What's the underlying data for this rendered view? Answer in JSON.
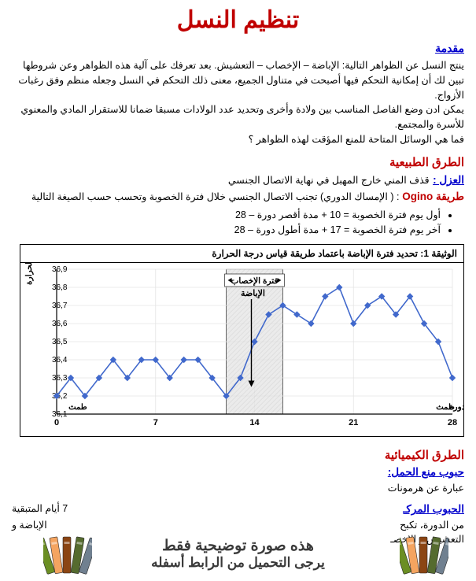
{
  "title": "تنظيم النسل",
  "intro": {
    "header": "مقدمة",
    "p1": "ينتج النسل عن الظواهر التالية: الإباضة – الإخصاب – التعشيش. بعد تعرفك على آلية هذه الظواهر وعن شروطها تبين لك أن إمكانية التحكم فيها أصبحت في متناول الجميع، معنى ذلك التحكم في النسل وجعله منظم وفق رغبات الأزواج.",
    "p2": "يمكن ادن وضع الفاصل المناسب بين ولادة وأخرى وتحديد عدد الولادات مسبقا ضمانا للاستقرار المادي والمعنوي للأسرة والمجتمع.",
    "p3": "فما هي الوسائل المتاحة للمنع المؤقت لهذه الظواهر ؟"
  },
  "natural": {
    "header": "الطرق الطبيعية",
    "azl_term": "العزل :",
    "azl_text": " قذف المني خارج المهبل في نهاية الاتصال الجنسي",
    "ogino_term": "طريقة Ogino ",
    "ogino_text": ": ( الإمساك الدوري) تجنب الاتصال الجنسي خلال فترة الخصوبة  وتحسب حسب الصيغة التالية",
    "bullet1": "أول يوم فترة الخصوبة = 10 + مدة أقصر دورة – 28",
    "bullet2": "آخر يوم فترة الخصوبة = 17 + مدة أطول دورة – 28"
  },
  "chart": {
    "title": "الوثيقة 1: تحديد فترة الإباضة باعتماد طريقة قياس درجة الحرارة",
    "yaxis_label": "الحرارة",
    "xaxis_label": "أيام الدورة",
    "tamth": "طمث",
    "fertile_label": "فترة الإخصاب",
    "ovulation_label": "الإباضة",
    "y_ticks": [
      "36,9",
      "36,8",
      "36,7",
      "36,6",
      "36,5",
      "36,4",
      "36,3",
      "36,2",
      "36,1"
    ],
    "x_ticks": [
      "0",
      "7",
      "14",
      "21",
      "28"
    ],
    "line_color": "#4169cc",
    "marker_color": "#4169cc",
    "grid_color": "#e5e5e5",
    "shade_color": "rgba(0,0,0,0.08)",
    "data_y": [
      36.2,
      36.3,
      36.2,
      36.3,
      36.4,
      36.3,
      36.4,
      36.4,
      36.3,
      36.4,
      36.4,
      36.3,
      36.2,
      36.3,
      36.5,
      36.65,
      36.7,
      36.65,
      36.6,
      36.75,
      36.8,
      36.6,
      36.7,
      36.75,
      36.65,
      36.75,
      36.6,
      36.5,
      36.3
    ]
  },
  "chemical": {
    "header": "الطرق الكيميائية",
    "subheader": "حبوب منع الحمل:",
    "line1": "عبارة عن هرمونات",
    "line2_term": "الحبوب المركـ",
    "line2_end": "7 أيام المتبقية",
    "line3": "من الدورة، تكبح",
    "line3b": "الإباضة و",
    "line4": "التعشيش و الإخصـ"
  },
  "overlay": {
    "t1": "هذه صورة توضيحية فقط",
    "t2": "يرجى التحميل من الرابط أسفله"
  },
  "book_colors": [
    "#6b8e23",
    "#f4a460",
    "#8b4513",
    "#556b2f",
    "#708090"
  ]
}
